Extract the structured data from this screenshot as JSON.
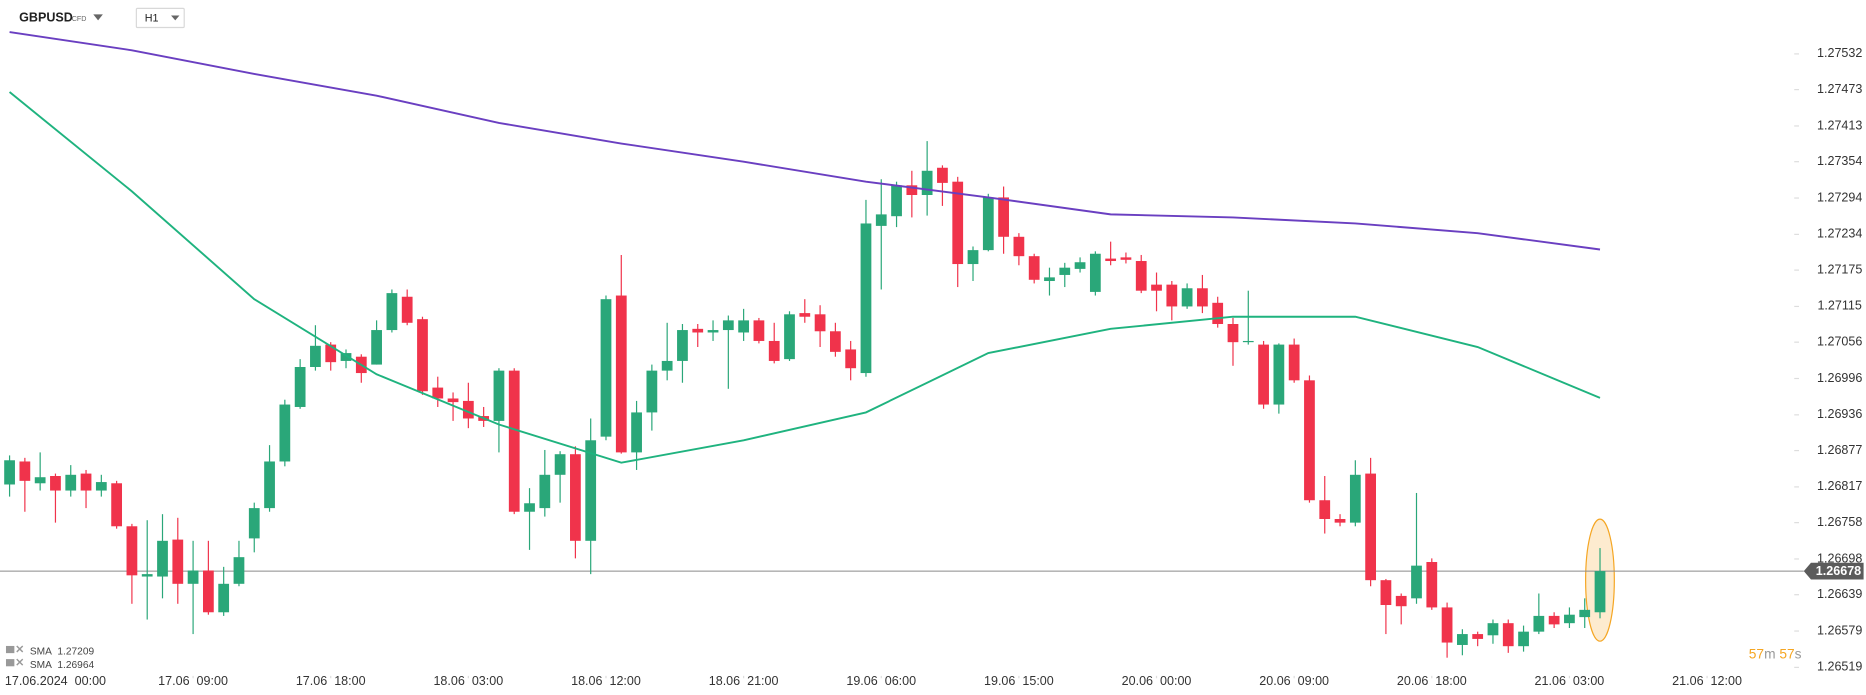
{
  "chart_data": {
    "type": "candlestick",
    "symbol": "GBPUSD",
    "instrument_type": "CFD",
    "timeframe": "H1",
    "up_color": "#2aa779",
    "down_color": "#f0334b",
    "x": [
      0,
      1,
      2,
      3,
      4,
      5,
      6,
      7,
      8,
      9,
      10,
      11,
      12,
      13,
      14,
      15,
      16,
      17,
      18,
      19,
      20,
      21,
      22,
      23,
      24,
      25,
      26,
      27,
      28,
      29,
      30,
      31,
      32,
      33,
      34,
      35,
      36,
      37,
      38,
      39,
      40,
      41,
      42,
      43,
      44,
      45,
      46,
      47,
      48,
      49,
      50,
      51,
      52,
      53,
      54,
      55,
      56,
      57,
      58,
      59,
      60,
      61,
      62,
      63,
      64,
      65,
      66,
      67,
      68,
      69,
      70,
      71,
      72,
      73,
      74,
      75,
      76,
      77,
      78,
      79,
      80,
      81,
      82,
      83,
      84,
      85,
      86,
      87,
      88,
      89,
      90,
      91,
      92,
      93,
      94,
      95,
      96,
      97,
      98,
      99,
      100,
      101,
      102,
      103,
      104
    ],
    "open": [
      1.26821,
      1.26859,
      1.26823,
      1.26835,
      1.26811,
      1.26839,
      1.26811,
      1.26823,
      1.26752,
      1.26669,
      1.26669,
      1.2673,
      1.26657,
      1.26679,
      1.2661,
      1.26657,
      1.26732,
      1.26782,
      1.26859,
      1.26949,
      1.27015,
      1.27052,
      1.27025,
      1.27032,
      1.27019,
      1.27076,
      1.27131,
      1.27094,
      1.26981,
      1.26963,
      1.26959,
      1.26934,
      1.26926,
      1.27009,
      1.26776,
      1.26782,
      1.26837,
      1.26871,
      1.26728,
      1.269,
      1.27133,
      1.26874,
      1.2694,
      1.27009,
      1.27025,
      1.27078,
      1.27072,
      1.27076,
      1.27072,
      1.27092,
      1.27058,
      1.27028,
      1.27104,
      1.27102,
      1.27074,
      1.27044,
      1.27005,
      1.27248,
      1.27264,
      1.27315,
      1.27299,
      1.27344,
      1.27321,
      1.27185,
      1.27208,
      1.27295,
      1.2723,
      1.27198,
      1.27157,
      1.27167,
      1.27177,
      1.27139,
      1.27194,
      1.27196,
      1.2719,
      1.27151,
      1.27151,
      1.27115,
      1.27145,
      1.27121,
      1.27086,
      1.27056,
      1.27052,
      1.26953,
      1.27052,
      1.26993,
      1.26795,
      1.26764,
      1.26758,
      1.26839,
      1.26663,
      1.26637,
      1.26633,
      1.26693,
      1.26618,
      1.26556,
      1.26574,
      1.26572,
      1.26592,
      1.26554,
      1.26578,
      1.26604,
      1.26592,
      1.26602,
      1.2661
    ],
    "high": [
      1.26869,
      1.26865,
      1.26874,
      1.26839,
      1.26853,
      1.26845,
      1.26837,
      1.26827,
      1.26756,
      1.26762,
      1.26772,
      1.26766,
      1.26728,
      1.26728,
      1.26685,
      1.26728,
      1.26791,
      1.26886,
      1.26961,
      1.27028,
      1.27084,
      1.27056,
      1.27044,
      1.27036,
      1.27092,
      1.27143,
      1.27143,
      1.27098,
      1.26999,
      1.26973,
      1.26989,
      1.26949,
      1.27013,
      1.27013,
      1.26815,
      1.26878,
      1.26876,
      1.26884,
      1.2693,
      1.27133,
      1.272,
      1.26959,
      1.27019,
      1.27088,
      1.27086,
      1.27086,
      1.27092,
      1.271,
      1.27111,
      1.27096,
      1.27088,
      1.27107,
      1.27127,
      1.27117,
      1.27088,
      1.27058,
      1.27291,
      1.27325,
      1.27321,
      1.27339,
      1.27388,
      1.27348,
      1.27329,
      1.27214,
      1.27301,
      1.27313,
      1.27236,
      1.27202,
      1.27179,
      1.27187,
      1.27196,
      1.27206,
      1.27222,
      1.27204,
      1.272,
      1.27171,
      1.27157,
      1.27153,
      1.27167,
      1.27131,
      1.27096,
      1.27141,
      1.27058,
      1.27054,
      1.27062,
      1.27001,
      1.26835,
      1.26772,
      1.26861,
      1.26865,
      1.26665,
      1.26641,
      1.26807,
      1.26699,
      1.26626,
      1.26582,
      1.26578,
      1.26598,
      1.26598,
      1.26588,
      1.26641,
      1.2661,
      1.26618,
      1.26633,
      1.26716
    ],
    "low": [
      1.26801,
      1.26776,
      1.26811,
      1.26758,
      1.26801,
      1.26782,
      1.26801,
      1.26748,
      1.26624,
      1.26598,
      1.26633,
      1.26624,
      1.26574,
      1.26606,
      1.26604,
      1.26653,
      1.26709,
      1.26776,
      1.26851,
      1.26946,
      1.27009,
      1.27009,
      1.27013,
      1.26989,
      1.27019,
      1.27072,
      1.27084,
      1.26969,
      1.26949,
      1.26926,
      1.26914,
      1.26916,
      1.26874,
      1.26772,
      1.26713,
      1.26768,
      1.26791,
      1.26699,
      1.26673,
      1.26894,
      1.26872,
      1.26845,
      1.2691,
      1.26993,
      1.26989,
      1.27048,
      1.27058,
      1.26979,
      1.27058,
      1.27054,
      1.27021,
      1.27025,
      1.27088,
      1.27048,
      1.27032,
      1.26993,
      1.26999,
      1.27143,
      1.27246,
      1.27262,
      1.27265,
      1.27281,
      1.27147,
      1.27157,
      1.27206,
      1.27202,
      1.27183,
      1.27153,
      1.27133,
      1.27147,
      1.27171,
      1.27133,
      1.27183,
      1.27186,
      1.27137,
      1.27107,
      1.27092,
      1.27111,
      1.27104,
      1.2708,
      1.27017,
      1.27052,
      1.26946,
      1.26938,
      1.26989,
      1.26791,
      1.2674,
      1.26752,
      1.26752,
      1.26653,
      1.26574,
      1.2659,
      1.26624,
      1.26614,
      1.26535,
      1.26539,
      1.26554,
      1.26558,
      1.26543,
      1.26545,
      1.26574,
      1.26584,
      1.26584,
      1.26584,
      1.266
    ],
    "close": [
      1.26861,
      1.26827,
      1.26833,
      1.26811,
      1.26837,
      1.26811,
      1.26825,
      1.26752,
      1.26671,
      1.26673,
      1.26728,
      1.26657,
      1.26679,
      1.2661,
      1.26657,
      1.26701,
      1.26782,
      1.26859,
      1.26953,
      1.27015,
      1.2705,
      1.27023,
      1.27038,
      1.27005,
      1.27076,
      1.27137,
      1.27088,
      1.26975,
      1.26963,
      1.26957,
      1.2693,
      1.26926,
      1.27009,
      1.26776,
      1.2679,
      1.26837,
      1.26871,
      1.26728,
      1.26894,
      1.27127,
      1.26874,
      1.2694,
      1.27009,
      1.27025,
      1.27076,
      1.27072,
      1.27076,
      1.27092,
      1.27092,
      1.27058,
      1.27025,
      1.27102,
      1.27098,
      1.27074,
      1.2704,
      1.27013,
      1.27252,
      1.27267,
      1.27315,
      1.27299,
      1.27339,
      1.27319,
      1.27185,
      1.27208,
      1.27295,
      1.2723,
      1.27198,
      1.27159,
      1.27163,
      1.27179,
      1.27188,
      1.27202,
      1.2719,
      1.27192,
      1.27141,
      1.27141,
      1.27115,
      1.27145,
      1.27115,
      1.27086,
      1.27056,
      1.27058,
      1.26953,
      1.27052,
      1.26993,
      1.26795,
      1.26764,
      1.26758,
      1.26837,
      1.26663,
      1.26622,
      1.2662,
      1.26687,
      1.26618,
      1.2656,
      1.26574,
      1.26566,
      1.26592,
      1.26554,
      1.26578,
      1.26604,
      1.2659,
      1.26606,
      1.26614,
      1.26678
    ],
    "series": [
      {
        "name": "SMA",
        "color": "#6a3fc1",
        "x": [
          0,
          8,
          16,
          24,
          32,
          40,
          48,
          56,
          64,
          72,
          80,
          88,
          96,
          104
        ],
        "values": [
          1.27568,
          1.27538,
          1.27499,
          1.27463,
          1.27418,
          1.27384,
          1.27354,
          1.27321,
          1.27295,
          1.27267,
          1.27262,
          1.27252,
          1.27236,
          1.27209
        ]
      },
      {
        "name": "SMA",
        "color": "#1fb37f",
        "x": [
          0,
          8,
          16,
          24,
          32,
          40,
          48,
          56,
          64,
          72,
          80,
          88,
          96,
          104
        ],
        "values": [
          1.27469,
          1.27305,
          1.27127,
          1.27003,
          1.2692,
          1.26857,
          1.26894,
          1.2694,
          1.27038,
          1.27078,
          1.27098,
          1.27098,
          1.27048,
          1.26964
        ]
      }
    ],
    "current_price": 1.26678,
    "countdown": {
      "minutes": "57",
      "minutes_unit": "m",
      "seconds": "57",
      "seconds_unit": "s"
    },
    "xlim": [
      -0.626,
      116.7
    ],
    "xticks": [
      {
        "value": 3,
        "label": "17.06.2024  00:00"
      },
      {
        "value": 12,
        "label": "17.06  09:00"
      },
      {
        "value": 21,
        "label": "17.06  18:00"
      },
      {
        "value": 30,
        "label": "18.06  03:00"
      },
      {
        "value": 39,
        "label": "18.06  12:00"
      },
      {
        "value": 48,
        "label": "18.06  21:00"
      },
      {
        "value": 57,
        "label": "19.06  06:00"
      },
      {
        "value": 66,
        "label": "19.06  15:00"
      },
      {
        "value": 75,
        "label": "20.06  00:00"
      },
      {
        "value": 84,
        "label": "20.06  09:00"
      },
      {
        "value": 93,
        "label": "20.06  18:00"
      },
      {
        "value": 102,
        "label": "21.06  03:00"
      },
      {
        "value": 111,
        "label": "21.06  12:00"
      }
    ],
    "ylim": [
      1.26505,
      1.27621
    ],
    "yticks": [
      1.27532,
      1.27473,
      1.27413,
      1.27354,
      1.27294,
      1.27234,
      1.27175,
      1.27115,
      1.27056,
      1.26996,
      1.26936,
      1.26877,
      1.26817,
      1.26758,
      1.26698,
      1.26639,
      1.26579,
      1.26519
    ]
  }
}
